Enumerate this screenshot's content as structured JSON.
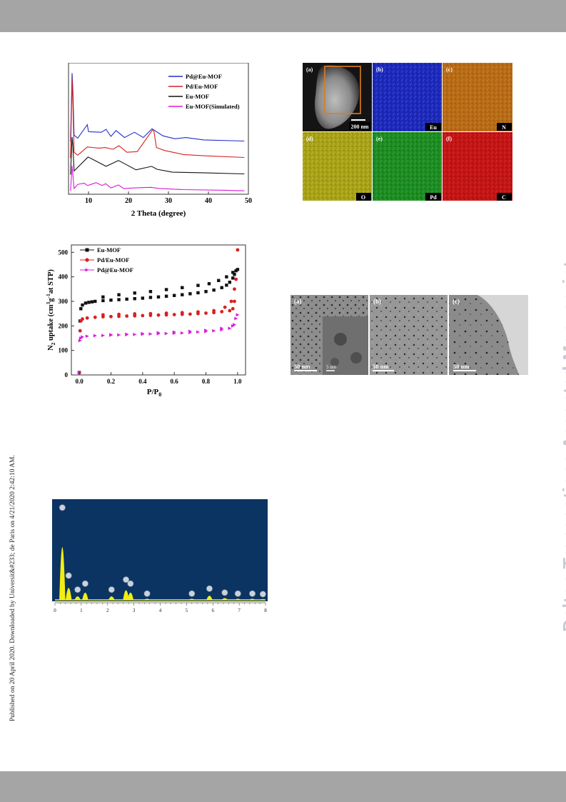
{
  "page": {
    "side_note": "Published on 20 April 2020. Downloaded by Universit&#233; de Paris on 4/21/2020 2:42:10 AM.",
    "watermark": "Dalton Transactions Accepted Manuscript"
  },
  "chart_data": [
    {
      "type": "line",
      "title": "",
      "xlabel": "2 Theta (degree)",
      "ylabel": "",
      "xlim": [
        5,
        50
      ],
      "xticks": [
        "10",
        "20",
        "30",
        "40",
        "50"
      ],
      "legend_position": "top-right",
      "series": [
        {
          "name": "Pd@Eu-MOF",
          "color": "#1f2fc8",
          "x": [
            5.5,
            5.9,
            6.1,
            6.4,
            7.3,
            9.7,
            10.0,
            13.2,
            14.4,
            15.6,
            16.9,
            19.0,
            21.5,
            23.7,
            25.9,
            28.6,
            31.6,
            34.3,
            38.8,
            49.0
          ],
          "y": [
            0.2,
            11.9,
            8.5,
            1.3,
            0.8,
            3.1,
            1.9,
            1.8,
            2.3,
            1.1,
            2.1,
            0.9,
            1.8,
            0.9,
            2.4,
            1.2,
            0.7,
            0.9,
            0.5,
            0.3
          ]
        },
        {
          "name": "Pd/Eu-MOF",
          "color": "#d62020",
          "x": [
            5.5,
            5.9,
            6.1,
            6.4,
            7.3,
            9.7,
            12.7,
            14.2,
            16.1,
            17.6,
            19.6,
            22.2,
            26.1,
            26.4,
            27.0,
            29.0,
            33.8,
            38.8,
            49.0
          ],
          "y": [
            0.2,
            13.8,
            9.2,
            1.2,
            0.7,
            2.1,
            1.9,
            2.0,
            1.7,
            2.3,
            1.2,
            1.3,
            5.1,
            4.7,
            2.0,
            1.5,
            0.8,
            0.6,
            0.3
          ]
        },
        {
          "name": "Eu-MOF",
          "color": "#111111",
          "x": [
            5.5,
            5.9,
            6.1,
            6.4,
            9.9,
            14.4,
            17.5,
            21.9,
            25.8,
            27.1,
            31.0,
            38.5,
            49.0
          ],
          "y": [
            0.2,
            6.6,
            4.9,
            0.8,
            3.2,
            1.6,
            2.6,
            1.0,
            1.6,
            1.1,
            0.6,
            0.5,
            0.3
          ]
        },
        {
          "name": "Eu-MOF(Simulated)",
          "color": "#d81ad8",
          "x": [
            5.5,
            5.9,
            6.1,
            6.4,
            7.3,
            8.9,
            9.8,
            11.9,
            13.4,
            14.3,
            15.6,
            17.5,
            18.8,
            21.8,
            25.6,
            27.7,
            33.6,
            44.2,
            49.0
          ],
          "y": [
            0.1,
            4.4,
            2.7,
            0.5,
            1.2,
            1.4,
            1.0,
            1.5,
            1.0,
            1.3,
            0.6,
            1.1,
            0.5,
            0.6,
            0.7,
            0.5,
            0.3,
            0.2,
            0.1
          ]
        }
      ]
    },
    {
      "type": "scatter",
      "title": "",
      "xlabel": "P/P0",
      "ylabel": "N2 uptake (cm3g-1at STP)",
      "xlim": [
        -0.05,
        1.05
      ],
      "ylim": [
        0,
        530
      ],
      "xticks": [
        "0.0",
        "0.2",
        "0.4",
        "0.6",
        "0.8",
        "1.0"
      ],
      "yticks": [
        "0",
        "100",
        "200",
        "300",
        "400",
        "500"
      ],
      "legend_position": "top-left",
      "series": [
        {
          "name": "Eu-MOF",
          "color": "#111111",
          "marker": "square",
          "x": [
            0.0,
            0.005,
            0.01,
            0.02,
            0.04,
            0.06,
            0.08,
            0.1,
            0.15,
            0.2,
            0.25,
            0.3,
            0.35,
            0.4,
            0.45,
            0.5,
            0.55,
            0.6,
            0.65,
            0.7,
            0.75,
            0.8,
            0.85,
            0.9,
            0.93,
            0.95,
            0.97,
            0.98,
            0.99,
            1.0,
            0.97,
            0.93,
            0.88,
            0.82,
            0.75,
            0.65,
            0.55,
            0.45,
            0.35,
            0.25,
            0.15
          ],
          "y": [
            10,
            220,
            270,
            285,
            293,
            296,
            298,
            300,
            303,
            305,
            307,
            309,
            311,
            313,
            316,
            318,
            321,
            324,
            327,
            331,
            335,
            340,
            346,
            356,
            366,
            378,
            395,
            410,
            425,
            430,
            418,
            400,
            385,
            372,
            365,
            356,
            348,
            340,
            334,
            327,
            318
          ]
        },
        {
          "name": "Pd/Eu-MOF",
          "color": "#d82020",
          "marker": "circle",
          "x": [
            0.0,
            0.005,
            0.01,
            0.02,
            0.05,
            0.1,
            0.15,
            0.2,
            0.25,
            0.3,
            0.35,
            0.4,
            0.45,
            0.5,
            0.55,
            0.6,
            0.65,
            0.7,
            0.75,
            0.8,
            0.85,
            0.9,
            0.95,
            0.97,
            0.98,
            0.99,
            1.0,
            0.98,
            0.96,
            0.92,
            0.85,
            0.75,
            0.65,
            0.55,
            0.45,
            0.35,
            0.25,
            0.15
          ],
          "y": [
            10,
            180,
            220,
            228,
            232,
            235,
            237,
            238,
            239,
            240,
            241,
            242,
            243,
            244,
            245,
            246,
            247,
            248,
            250,
            252,
            254,
            258,
            262,
            270,
            300,
            390,
            510,
            350,
            300,
            276,
            262,
            257,
            254,
            252,
            250,
            249,
            247,
            245
          ]
        },
        {
          "name": "Pd@Eu-MOF",
          "color": "#dd1adf",
          "marker": "triangle",
          "x": [
            0.0,
            0.005,
            0.01,
            0.02,
            0.05,
            0.1,
            0.15,
            0.2,
            0.25,
            0.3,
            0.35,
            0.4,
            0.45,
            0.5,
            0.55,
            0.6,
            0.65,
            0.7,
            0.75,
            0.8,
            0.85,
            0.9,
            0.95,
            0.98,
            0.99,
            1.0,
            0.97,
            0.9,
            0.8,
            0.7,
            0.6,
            0.5,
            0.4,
            0.3,
            0.2
          ],
          "y": [
            10,
            140,
            150,
            155,
            158,
            160,
            161,
            162,
            163,
            164,
            165,
            166,
            167,
            168,
            169,
            170,
            171,
            173,
            175,
            177,
            180,
            184,
            190,
            205,
            230,
            245,
            200,
            190,
            182,
            178,
            175,
            172,
            169,
            166,
            164
          ]
        }
      ]
    },
    {
      "type": "bar",
      "title": "",
      "xlabel": "",
      "ylabel": "",
      "xticks": [
        "0",
        "1",
        "2",
        "3",
        "4",
        "5",
        "6",
        "7",
        "8"
      ],
      "background": "#0b3462",
      "fill": "#f2ee12",
      "peaks": [
        {
          "x": 0.28,
          "height": 0.88
        },
        {
          "x": 0.52,
          "height": 0.2
        },
        {
          "x": 0.86,
          "height": 0.06
        },
        {
          "x": 1.15,
          "height": 0.12
        },
        {
          "x": 2.15,
          "height": 0.06
        },
        {
          "x": 2.7,
          "height": 0.16
        },
        {
          "x": 2.87,
          "height": 0.12
        },
        {
          "x": 3.5,
          "height": 0.02
        },
        {
          "x": 5.2,
          "height": 0.02
        },
        {
          "x": 5.87,
          "height": 0.07
        },
        {
          "x": 6.45,
          "height": 0.03
        },
        {
          "x": 6.95,
          "height": 0.02
        },
        {
          "x": 7.5,
          "height": 0.02
        },
        {
          "x": 7.9,
          "height": 0.015
        }
      ]
    }
  ],
  "eds_panels": [
    {
      "letter": "(a)",
      "element": "",
      "scale": "200 nm"
    },
    {
      "letter": "(b)",
      "element": "Eu"
    },
    {
      "letter": "(c)",
      "element": "N"
    },
    {
      "letter": "(d)",
      "element": "O"
    },
    {
      "letter": "(e)",
      "element": "Pd"
    },
    {
      "letter": "(f)",
      "element": "C"
    }
  ],
  "tem_panels": [
    {
      "letter": "(a)",
      "scale": "50 nm",
      "inset_scale": "5 nm"
    },
    {
      "letter": "(b)",
      "scale": "50 nm"
    },
    {
      "letter": "(c)",
      "scale": "50 nm"
    }
  ]
}
